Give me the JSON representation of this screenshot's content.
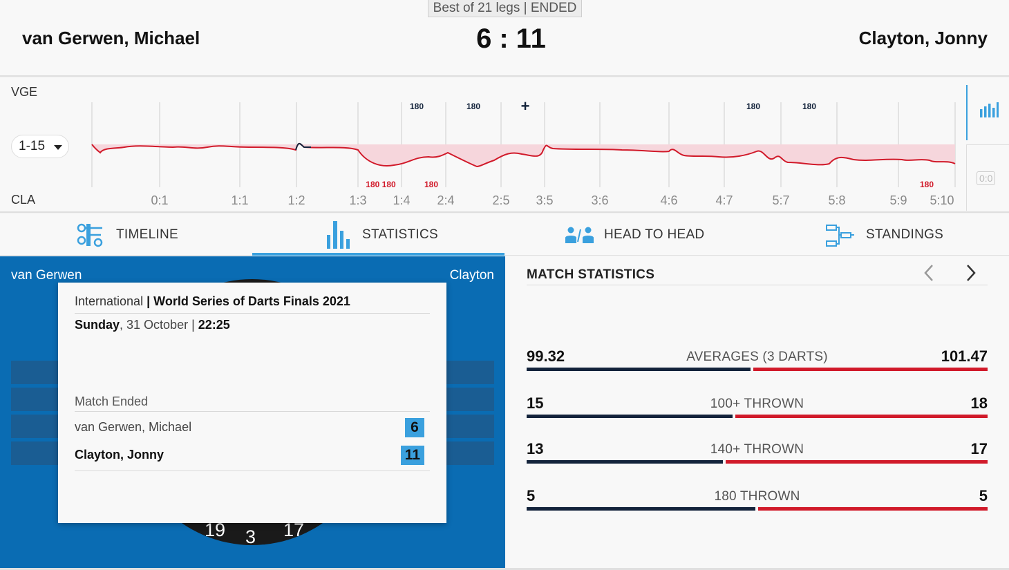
{
  "header": {
    "format": "Best of 21 legs | ENDED",
    "player_left": "van Gerwen, Michael",
    "player_right": "Clayton, Jonny",
    "score_left": "6",
    "score_sep": ":",
    "score_right": "11"
  },
  "timeline": {
    "label_top": "VGE",
    "label_bottom": "CLA",
    "range_selected": "1-15",
    "x_ticks": [
      "0:1",
      "1:1",
      "1:2",
      "1:3",
      "1:4",
      "2:4",
      "2:5",
      "3:5",
      "3:6",
      "4:6",
      "4:7",
      "5:7",
      "5:8",
      "5:9",
      "5:10"
    ],
    "top_markers": [
      "180",
      "180",
      "+",
      "180",
      "180"
    ],
    "bottom_markers": [
      "180 180",
      "180",
      "180"
    ],
    "zero_label": "0:0"
  },
  "tabs": [
    {
      "label": "TIMELINE",
      "icon": "timeline-icon"
    },
    {
      "label": "STATISTICS",
      "icon": "statistics-icon",
      "active": true
    },
    {
      "label": "HEAD TO HEAD",
      "icon": "head-to-head-icon"
    },
    {
      "label": "STANDINGS",
      "icon": "standings-icon"
    }
  ],
  "board": {
    "player_left": "van Gerwen",
    "player_right": "Clayton",
    "numbers": [
      "19",
      "3",
      "17"
    ]
  },
  "info_card": {
    "category": "International",
    "separator": "|",
    "event": "World Series of Darts Finals 2021",
    "day": "Sunday",
    "date": ", 31 October | ",
    "time": "22:25",
    "status": "Match Ended",
    "rows": [
      {
        "name": "van Gerwen, Michael",
        "score": "6"
      },
      {
        "name": "Clayton, Jonny",
        "score": "11"
      }
    ]
  },
  "stats": {
    "title": "MATCH STATISTICS",
    "rows": [
      {
        "label": "AVERAGES (3 DARTS)",
        "left": "99.32",
        "right": "101.47"
      },
      {
        "label": "100+ THROWN",
        "left": "15",
        "right": "18"
      },
      {
        "label": "140+ THROWN",
        "left": "13",
        "right": "17"
      },
      {
        "label": "180 THROWN",
        "left": "5",
        "right": "5"
      }
    ]
  },
  "colors": {
    "accent": "#3aa0de",
    "panel_blue": "#0a6cb3",
    "left_bar": "#13233b",
    "right_bar": "#d11a2a"
  }
}
